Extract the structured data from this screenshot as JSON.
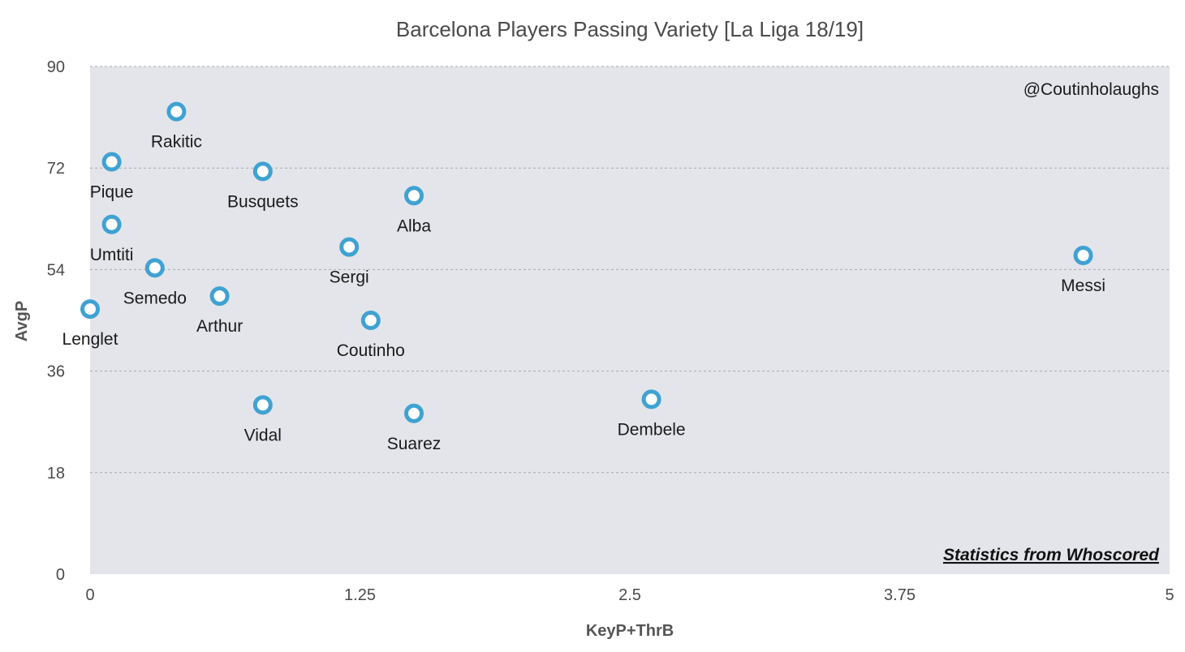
{
  "chart_data": {
    "type": "scatter",
    "title": "Barcelona Players Passing Variety [La Liga 18/19]",
    "xlabel": "KeyP+ThrB",
    "ylabel": "AvgP",
    "xlim": [
      0,
      5
    ],
    "ylim": [
      0,
      90
    ],
    "xticks": [
      0,
      1.25,
      2.5,
      3.75,
      5
    ],
    "xtick_labels": [
      "0",
      "1.25",
      "2.5",
      "3.75",
      "5"
    ],
    "yticks": [
      0,
      18,
      36,
      54,
      72,
      90
    ],
    "ytick_labels": [
      "0",
      "18",
      "36",
      "54",
      "72",
      "90"
    ],
    "grid": true,
    "marker_color": "#3fa2d2",
    "plot_background": "#e4e5ea",
    "watermark": "@Coutinholaughs",
    "source_note": "Statistics from Whoscored",
    "points": [
      {
        "label": "Rakitic",
        "x": 0.4,
        "y": 82.0,
        "label_pos": "below"
      },
      {
        "label": "Pique",
        "x": 0.1,
        "y": 73.1,
        "label_pos": "below"
      },
      {
        "label": "Busquets",
        "x": 0.8,
        "y": 71.4,
        "label_pos": "below"
      },
      {
        "label": "Alba",
        "x": 1.5,
        "y": 67.1,
        "label_pos": "below"
      },
      {
        "label": "Umtiti",
        "x": 0.1,
        "y": 62.0,
        "label_pos": "below"
      },
      {
        "label": "Sergi",
        "x": 1.2,
        "y": 58.0,
        "label_pos": "below"
      },
      {
        "label": "Messi",
        "x": 4.6,
        "y": 56.5,
        "label_pos": "below"
      },
      {
        "label": "Semedo",
        "x": 0.3,
        "y": 54.3,
        "label_pos": "below"
      },
      {
        "label": "Arthur",
        "x": 0.6,
        "y": 49.3,
        "label_pos": "below"
      },
      {
        "label": "Lenglet",
        "x": 0.0,
        "y": 47.0,
        "label_pos": "below"
      },
      {
        "label": "Coutinho",
        "x": 1.3,
        "y": 45.0,
        "label_pos": "below"
      },
      {
        "label": "Dembele",
        "x": 2.6,
        "y": 31.0,
        "label_pos": "below"
      },
      {
        "label": "Vidal",
        "x": 0.8,
        "y": 30.0,
        "label_pos": "below"
      },
      {
        "label": "Suarez",
        "x": 1.5,
        "y": 28.5,
        "label_pos": "below"
      }
    ]
  }
}
